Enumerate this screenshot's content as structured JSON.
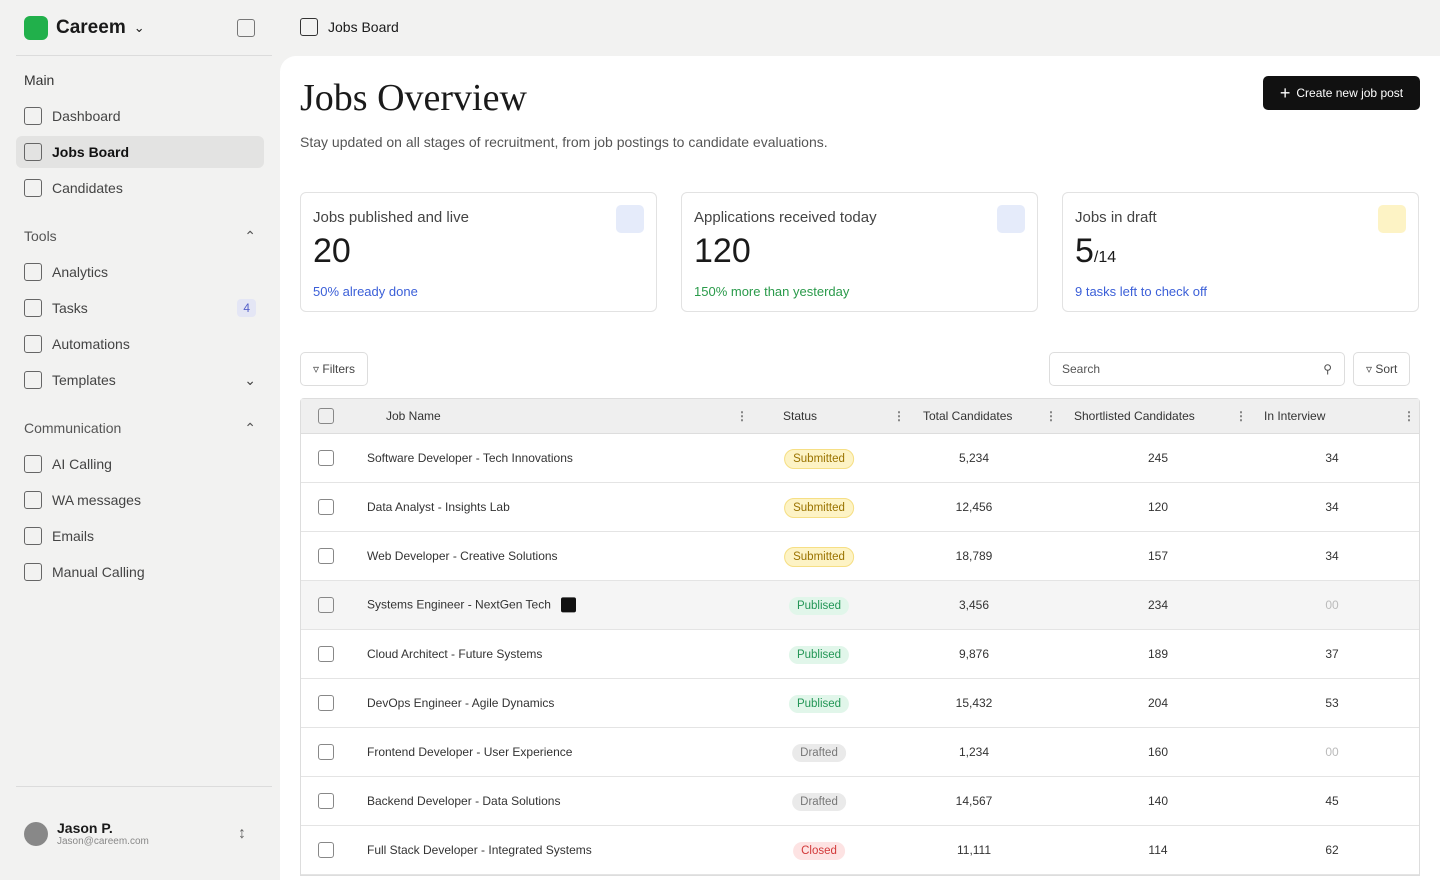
{
  "sidebar": {
    "brand": "Careem",
    "sections": [
      {
        "title": "Main",
        "items": [
          {
            "label": "Dashboard"
          },
          {
            "label": "Jobs Board"
          },
          {
            "label": "Candidates"
          }
        ]
      },
      {
        "title": "Tools",
        "items": [
          {
            "label": "Analytics"
          },
          {
            "label": "Tasks",
            "badge": "4"
          },
          {
            "label": "Automations"
          },
          {
            "label": "Templates"
          }
        ]
      },
      {
        "title": "Communication",
        "items": [
          {
            "label": "AI Calling"
          },
          {
            "label": "WA messages"
          },
          {
            "label": "Emails"
          },
          {
            "label": "Manual Calling"
          }
        ]
      }
    ],
    "user": {
      "name": "Jason P.",
      "email": "Jason@careem.com"
    }
  },
  "topbar": {
    "title": "Jobs Board"
  },
  "header": {
    "title": "Jobs Overview",
    "subtitle": "Stay updated on all stages of recruitment, from job postings to candidate evaluations.",
    "button": "Create new job post"
  },
  "stats": [
    {
      "label": "Jobs published and live",
      "value": "20",
      "note": "50% already done"
    },
    {
      "label": "Applications received today",
      "value": "120",
      "note": "150% more than yesterday"
    },
    {
      "label": "Jobs in draft",
      "value": "5",
      "suffix": "/14",
      "note": "9 tasks left to check off"
    }
  ],
  "toolbar": {
    "filters": "Filters",
    "search": "Search",
    "sort": "Sort"
  },
  "table": {
    "columns": [
      "Job Name",
      "Status",
      "Total Candidates",
      "Shortlisted Candidates",
      "In Interview"
    ],
    "rows": [
      {
        "job": "Software Developer - Tech Innovations",
        "status": "Submitted",
        "status_color": "yellow",
        "total": "5,234",
        "shortlisted": "245",
        "interview": "34"
      },
      {
        "job": "Data Analyst - Insights Lab",
        "status": "Submitted",
        "status_color": "yellow",
        "total": "12,456",
        "shortlisted": "120",
        "interview": "34"
      },
      {
        "job": "Web Developer - Creative Solutions",
        "status": "Submitted",
        "status_color": "yellow",
        "total": "18,789",
        "shortlisted": "157",
        "interview": "34"
      },
      {
        "job": "Systems Engineer - NextGen Tech",
        "status": "Publised",
        "status_color": "green",
        "total": "3,456",
        "shortlisted": "234",
        "interview": "00"
      },
      {
        "job": "Cloud Architect - Future Systems",
        "status": "Publised",
        "status_color": "green",
        "total": "9,876",
        "shortlisted": "189",
        "interview": "37"
      },
      {
        "job": "DevOps Engineer - Agile Dynamics",
        "status": "Publised",
        "status_color": "green",
        "total": "15,432",
        "shortlisted": "204",
        "interview": "53"
      },
      {
        "job": "Frontend Developer - User Experience",
        "status": "Drafted",
        "status_color": "gray",
        "total": "1,234",
        "shortlisted": "160",
        "interview": "00"
      },
      {
        "job": "Backend Developer - Data Solutions",
        "status": "Drafted",
        "status_color": "gray",
        "total": "14,567",
        "shortlisted": "140",
        "interview": "45"
      },
      {
        "job": "Full Stack Developer - Integrated Systems",
        "status": "Closed",
        "status_color": "red",
        "total": "11,111",
        "shortlisted": "114",
        "interview": "62"
      }
    ]
  }
}
